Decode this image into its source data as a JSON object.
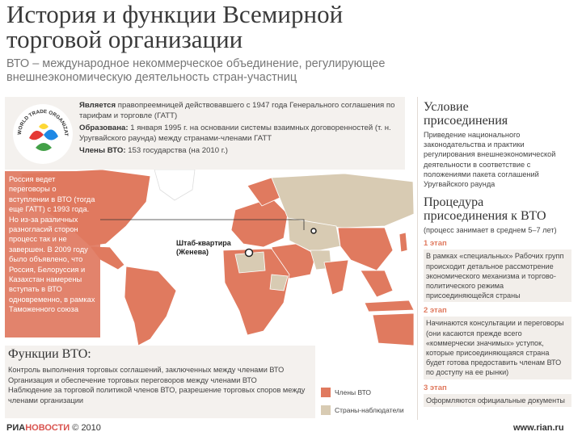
{
  "title_lines": [
    "История и функции Всемирной",
    "торговой организации"
  ],
  "subtitle_lines": [
    "ВТО – международное некоммерческое объединение, регулирующее",
    "внешнеэкономическую деятельность стран-участниц"
  ],
  "logo": {
    "text": "WORLD TRADE ORGANIZATION",
    "icon": "wto-logo-icon"
  },
  "org_info": {
    "is_label": "Является",
    "is_text": "правопреемницей действовавшего с 1947 года Генерального соглашения по тарифам и торговле (ГАТТ)",
    "founded_label": "Образована:",
    "founded_text": "1 января 1995 г. на основании системы взаимных договоренностей (т. н. Уругвайского раунда) между странами-членами ГАТТ",
    "members_label": "Члены ВТО:",
    "members_text": "153 государства (на 2010 г.)"
  },
  "russia_panel": "Россия ведет переговоры о вступлении в ВТО (тогда еще ГАТТ) с 1993 года. Но из-за различных разногласий сторон процесс так и не завершен. В 2009 году было объявлено, что Россия, Белоруссия и Казахстан намерены вступать в ВТО одновременно, в рамках Таможенного союза",
  "hq_label_lines": [
    "Штаб-квартира",
    "(Женева)"
  ],
  "functions": {
    "title": "Функции ВТО:",
    "items": [
      "Контроль выполнения торговых соглашений, заключенных между членами ВТО",
      "Организация и обеспечение торговых переговоров между членами ВТО",
      "Наблюдение за торговой политикой членов ВТО, разрешение торговых споров между членами организации"
    ]
  },
  "legend": {
    "members": {
      "label": "Члены ВТО",
      "color": "#e07a5f"
    },
    "observers": {
      "label": "Страны-наблюдатели",
      "color": "#d8cbb3"
    }
  },
  "right": {
    "cond_title_lines": [
      "Условие",
      "присоединения"
    ],
    "cond_text": "Приведение национального законодательства и практики регулирования внешнеэкономической деятельности в соответствие с положениями пакета соглашений Уругвайского раунда",
    "proc_title_lines": [
      "Процедура",
      "присоединения к ВТО"
    ],
    "proc_note": "(процесс занимает в среднем 5–7 лет)",
    "stages": [
      {
        "head": "1 этап",
        "text": "В рамках «специальных» Рабочих групп происходит детальное рассмотрение экономического механизма и торгово-политического режима присоединяющейся страны"
      },
      {
        "head": "2 этап",
        "text": "Начинаются консультации и переговоры (они касаются прежде всего «коммерчески значимых» уступок, которые присоединяющаяся страна будет готова предоставить членам ВТО по доступу на ее рынки)"
      },
      {
        "head": "3 этап",
        "text": "Оформляются официальные документы"
      }
    ]
  },
  "footer": {
    "brand_a": "РИА",
    "brand_b": "НОВОСТИ",
    "copyright": "© 2010",
    "url": "www.rian.ru"
  },
  "colors": {
    "member": "#e07a5f",
    "observer": "#d8cbb3",
    "nonmember": "#ffffff",
    "panel": "#f4f1ee"
  }
}
